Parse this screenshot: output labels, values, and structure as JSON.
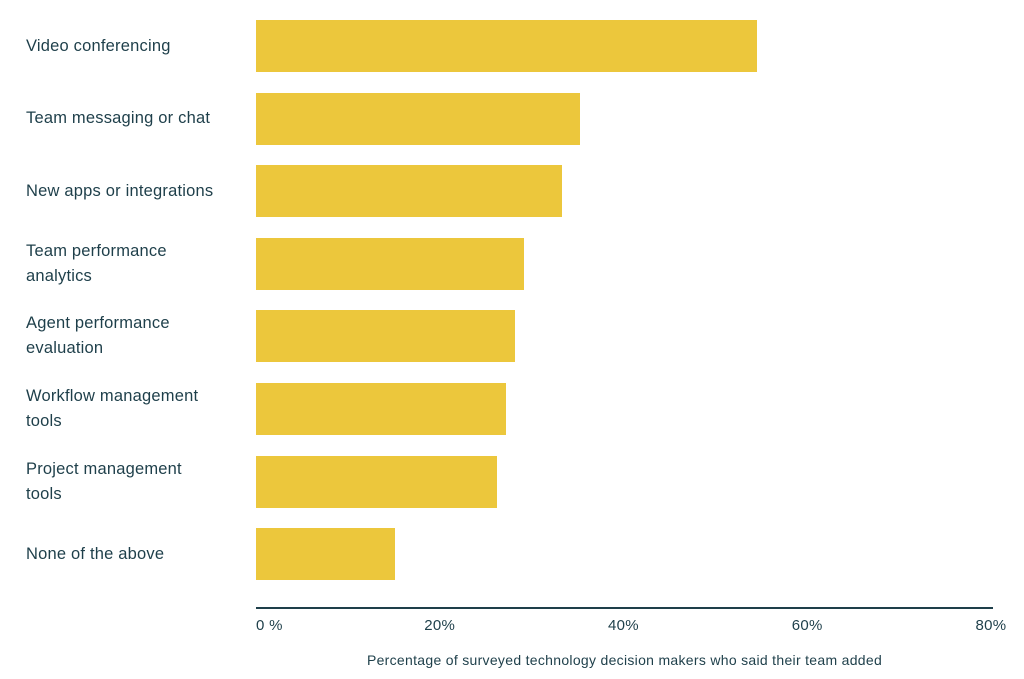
{
  "chart_data": {
    "type": "bar",
    "orientation": "horizontal",
    "categories": [
      "Video conferencing",
      "Team messaging or chat",
      "New apps or integrations",
      "Team performance\nanalytics",
      "Agent performance\nevaluation",
      "Workflow management\ntools",
      "Project management\ntools",
      "None of the above"
    ],
    "values": [
      54.5,
      35.3,
      33.3,
      29.2,
      28.2,
      27.2,
      26.2,
      15.1
    ],
    "xlim": [
      0,
      80
    ],
    "xticks": [
      0,
      20,
      40,
      60,
      80
    ],
    "xtick_labels": [
      "0 %",
      "20%",
      "40%",
      "60%",
      "80%"
    ],
    "xlabel": "Percentage of surveyed technology decision makers who said their team added",
    "ylabel": "",
    "title": "",
    "grid": false,
    "legend": "none",
    "bar_color": "#ecc73c",
    "text_color": "#1e3f4a"
  }
}
